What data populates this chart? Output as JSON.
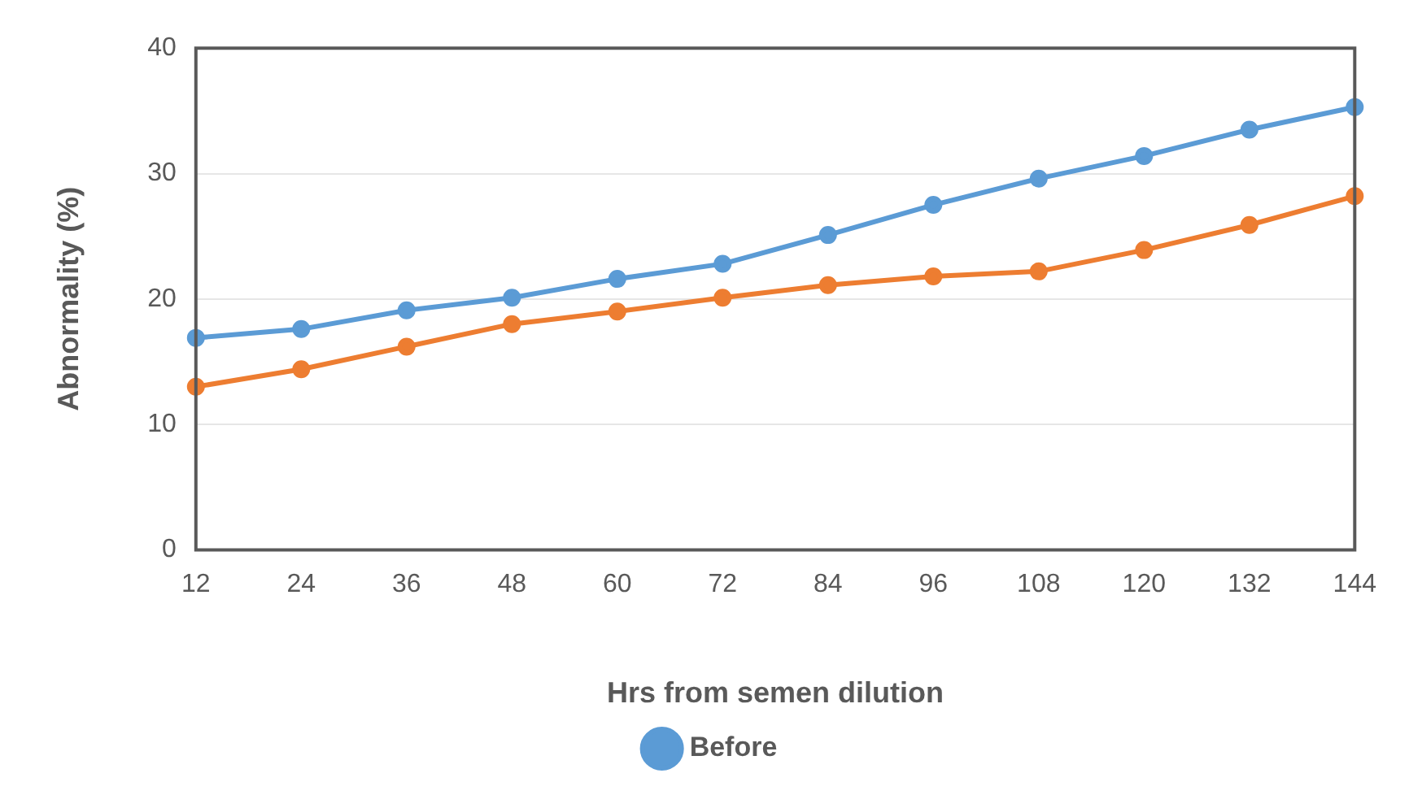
{
  "chart_data": {
    "type": "line",
    "xlabel": "Hrs from semen dilution",
    "ylabel": "Abnormality (%)",
    "categories": [
      "12",
      "24",
      "36",
      "48",
      "60",
      "72",
      "84",
      "96",
      "108",
      "120",
      "132",
      "144"
    ],
    "series": [
      {
        "name": "Before",
        "color": "#5b9bd5",
        "values": [
          16.9,
          17.6,
          19.1,
          20.1,
          21.6,
          22.8,
          25.1,
          27.5,
          29.6,
          31.4,
          33.5,
          35.3
        ]
      },
      {
        "color": "#ed7d31",
        "values": [
          13.0,
          14.4,
          16.2,
          18.0,
          19.0,
          20.1,
          21.1,
          21.8,
          22.2,
          23.9,
          25.9,
          28.2
        ]
      }
    ],
    "ylim": [
      0,
      40
    ],
    "yticks": [
      0,
      10,
      20,
      30,
      40
    ],
    "grid": "y",
    "legend": "bottom",
    "marker": "circle",
    "line_style": "solid"
  }
}
